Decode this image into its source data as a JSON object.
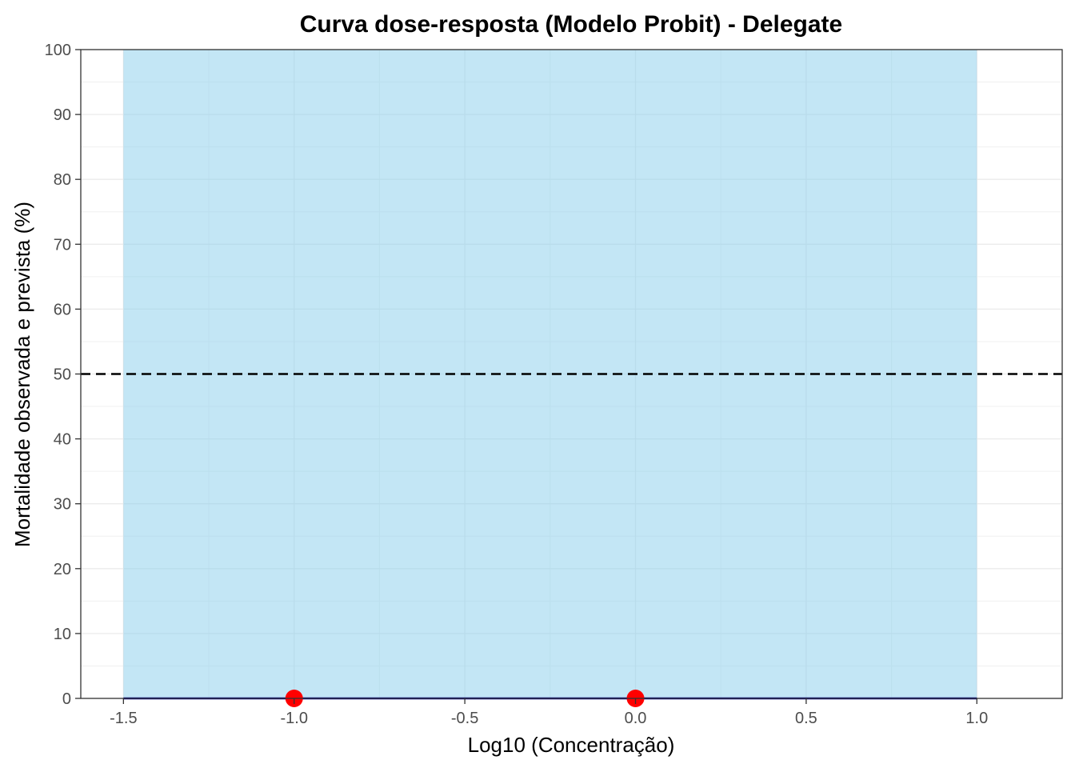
{
  "chart_data": {
    "type": "line",
    "title": "Curva dose-resposta (Modelo Probit) - Delegate",
    "xlabel": "Log10 (Concentração)",
    "ylabel": "Mortalidade observada e prevista (%)",
    "xlim": [
      -1.625,
      1.25
    ],
    "ylim": [
      0,
      100
    ],
    "x_ticks": [
      -1.5,
      -1.0,
      -0.5,
      0.0,
      0.5,
      1.0
    ],
    "x_tick_labels": [
      "-1.5",
      "-1.0",
      "-0.5",
      "0.0",
      "0.5",
      "1.0"
    ],
    "y_ticks": [
      0,
      10,
      20,
      30,
      40,
      50,
      60,
      70,
      80,
      90,
      100
    ],
    "y_tick_labels": [
      "0",
      "10",
      "20",
      "30",
      "40",
      "50",
      "60",
      "70",
      "80",
      "90",
      "100"
    ],
    "grid": true,
    "legend": "none",
    "confidence_band": {
      "x": [
        -1.5,
        1.0
      ],
      "lower": [
        0,
        0
      ],
      "upper": [
        100,
        100
      ],
      "color": "#87CEEB"
    },
    "fitted_curve": {
      "x": [
        -1.5,
        1.0
      ],
      "y": [
        0,
        0
      ],
      "color": "#00008B"
    },
    "reference_line": {
      "y": 50,
      "style": "dashed",
      "color": "#000000"
    },
    "observed_points": {
      "x": [
        -1.0,
        0.0
      ],
      "y": [
        0,
        0
      ],
      "color": "#FF0000"
    }
  }
}
